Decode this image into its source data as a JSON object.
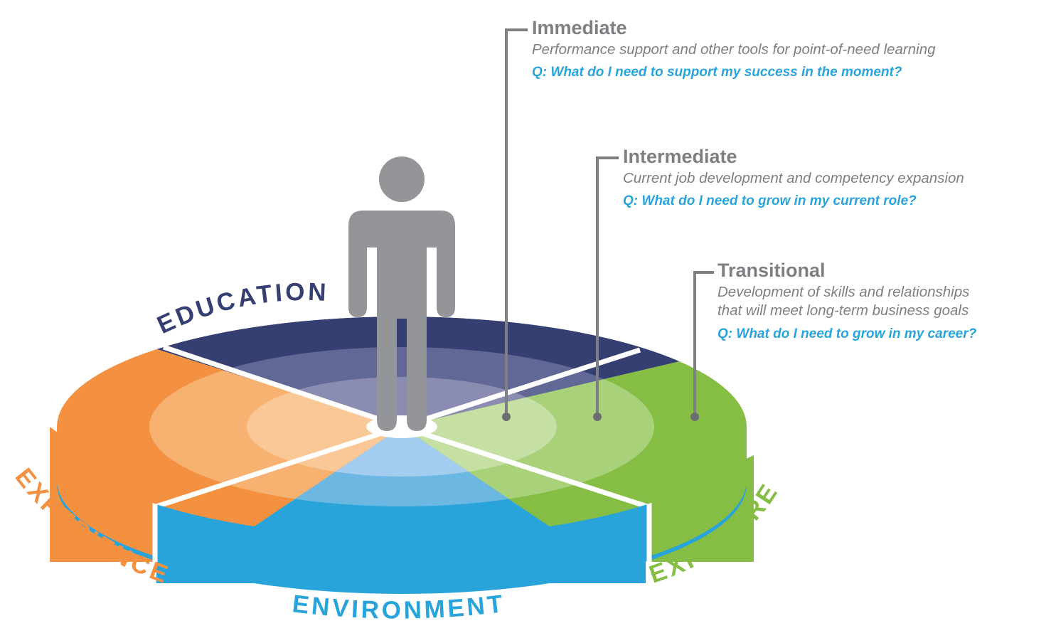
{
  "colors": {
    "education": "#353f72",
    "experience": "#f39140",
    "environment": "#29a4db",
    "exposure": "#86bd45",
    "person": "#939598",
    "callout_text": "#7d7f82",
    "question_text": "#29a4db"
  },
  "segments": {
    "education": "EDUCATION",
    "experience": "EXPERIENCE",
    "environment": "ENVIRONMENT",
    "exposure": "EXPOSURE"
  },
  "callouts": {
    "immediate": {
      "title": "Immediate",
      "description": "Performance support and other tools for point-of-need learning",
      "question": "Q: What do I need to support my success in the moment?"
    },
    "intermediate": {
      "title": "Intermediate",
      "description": "Current job development and competency expansion",
      "question": "Q: What do I need to grow in my current role?"
    },
    "transitional": {
      "title": "Transitional",
      "description": "Development of skills and relationships\nthat will meet long-term business goals",
      "question": "Q: What do I need to grow in my career?"
    }
  }
}
